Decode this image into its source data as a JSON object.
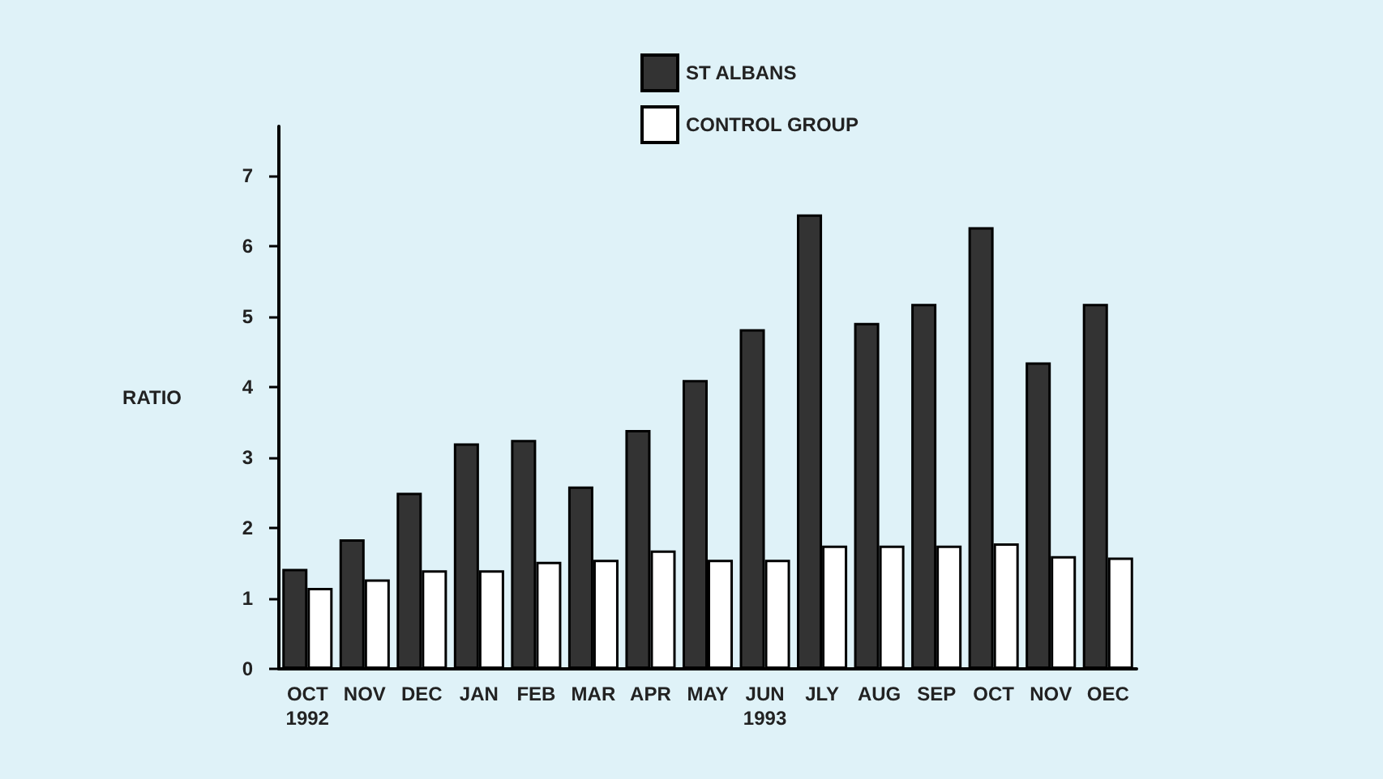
{
  "chart_data": {
    "type": "bar",
    "ylabel": "RATIO",
    "categories": [
      "OCT\n1992",
      "NOV",
      "DEC",
      "JAN",
      "FEB",
      "MAR",
      "APR",
      "MAY",
      "JUN\n1993",
      "JLY",
      "AUG",
      "SEP",
      "OCT",
      "NOV",
      "OEC"
    ],
    "series": [
      {
        "name": "ST ALBANS",
        "color": "#333333",
        "values": [
          1.42,
          1.84,
          2.5,
          3.2,
          3.25,
          2.59,
          3.39,
          4.1,
          4.82,
          6.45,
          4.91,
          5.18,
          6.27,
          4.35,
          5.18
        ]
      },
      {
        "name": "CONTROL GROUP",
        "color": "#ffffff",
        "values": [
          1.15,
          1.27,
          1.4,
          1.4,
          1.52,
          1.55,
          1.68,
          1.55,
          1.55,
          1.75,
          1.75,
          1.75,
          1.78,
          1.6,
          1.58
        ]
      }
    ],
    "ylim": [
      0,
      7.7
    ],
    "yticks": [
      0,
      1,
      2,
      3,
      4,
      5,
      6,
      7
    ],
    "grid": false,
    "legend": "top"
  }
}
